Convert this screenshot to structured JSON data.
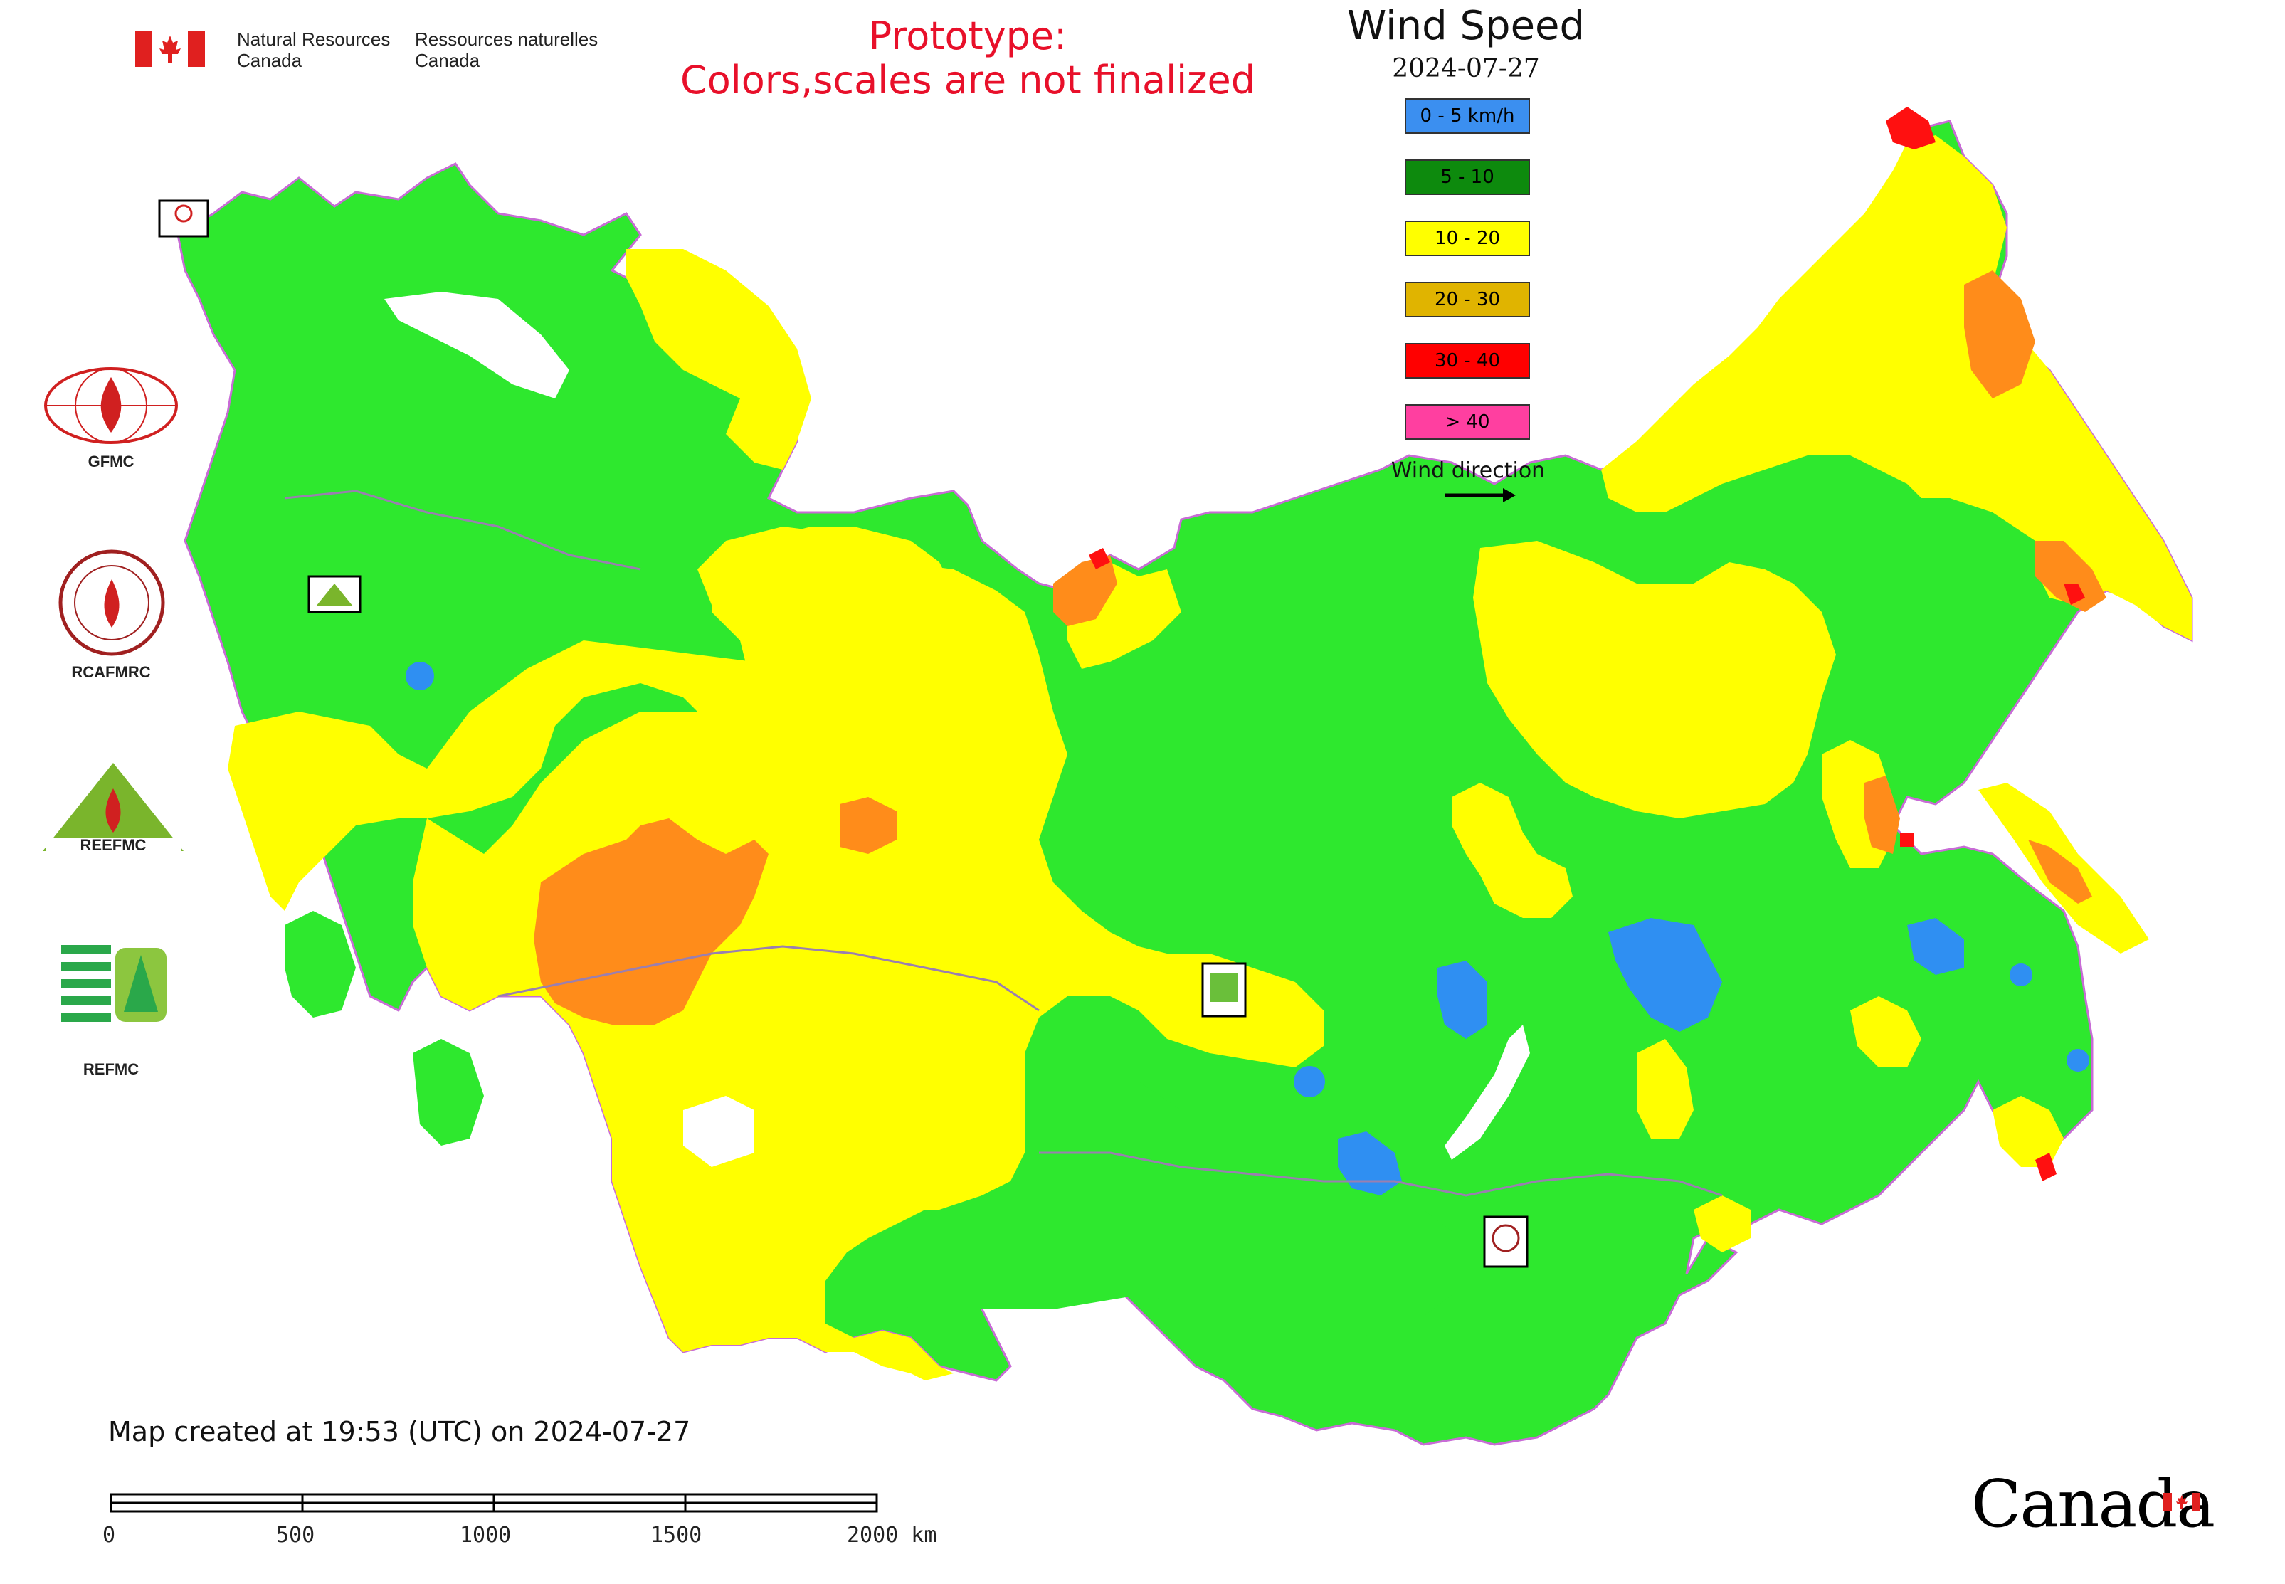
{
  "header": {
    "agency_en_line1": "Natural Resources",
    "agency_en_line2": "Canada",
    "agency_fr_line1": "Ressources naturelles",
    "agency_fr_line2": "Canada",
    "prototype_line1": "Prototype:",
    "prototype_line2": "Colors,scales are not finalized"
  },
  "legend": {
    "title": "Wind Speed",
    "date": "2024-07-27",
    "items": [
      {
        "label": "0 - 5 km/h",
        "color": "#3b8ff0"
      },
      {
        "label": "5 - 10",
        "color": "#0d8a0d"
      },
      {
        "label": "10 - 20",
        "color": "#ffff00"
      },
      {
        "label": "20 - 30",
        "color": "#e0b400"
      },
      {
        "label": "30 - 40",
        "color": "#ff0000"
      },
      {
        "label": "> 40",
        "color": "#ff3fa0"
      }
    ],
    "wind_direction_label": "Wind direction"
  },
  "organizations": [
    {
      "label": "GFMC"
    },
    {
      "label": "RCAFMRC"
    },
    {
      "label": "REEFMC"
    },
    {
      "label": "REFMC"
    }
  ],
  "footer": {
    "created": "Map created at 19:53 (UTC) on 2024-07-27",
    "scale_ticks": [
      "0",
      "500",
      "1000",
      "1500",
      "2000 km"
    ],
    "wordmark": "Canada"
  },
  "map_colors": {
    "green": "#2ee82e",
    "yellow": "#ffff00",
    "orange": "#ff8c1a",
    "blue": "#2f8ff2",
    "red": "#ff1010",
    "white": "#ffffff",
    "border": "#c86bd6"
  }
}
